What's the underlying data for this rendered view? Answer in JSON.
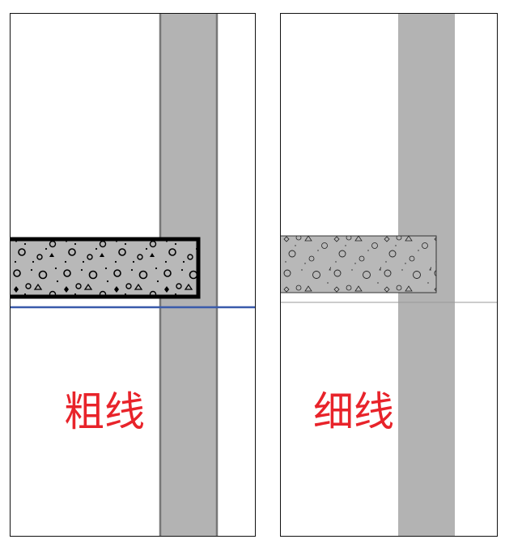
{
  "panels": [
    {
      "id": "left",
      "caption": "粗线",
      "line_weight": "thick",
      "floor_line_color": "#3a5bab"
    },
    {
      "id": "right",
      "caption": "细线",
      "line_weight": "thin",
      "floor_line_color": "#999999"
    }
  ],
  "colors": {
    "caption": "#e8232a",
    "wall_fill": "#b3b3b3",
    "concrete_fill": "#b8b8b8",
    "outline": "#000000",
    "panel_border": "#111111"
  },
  "icons": [
    "concrete-hatch-pattern"
  ]
}
